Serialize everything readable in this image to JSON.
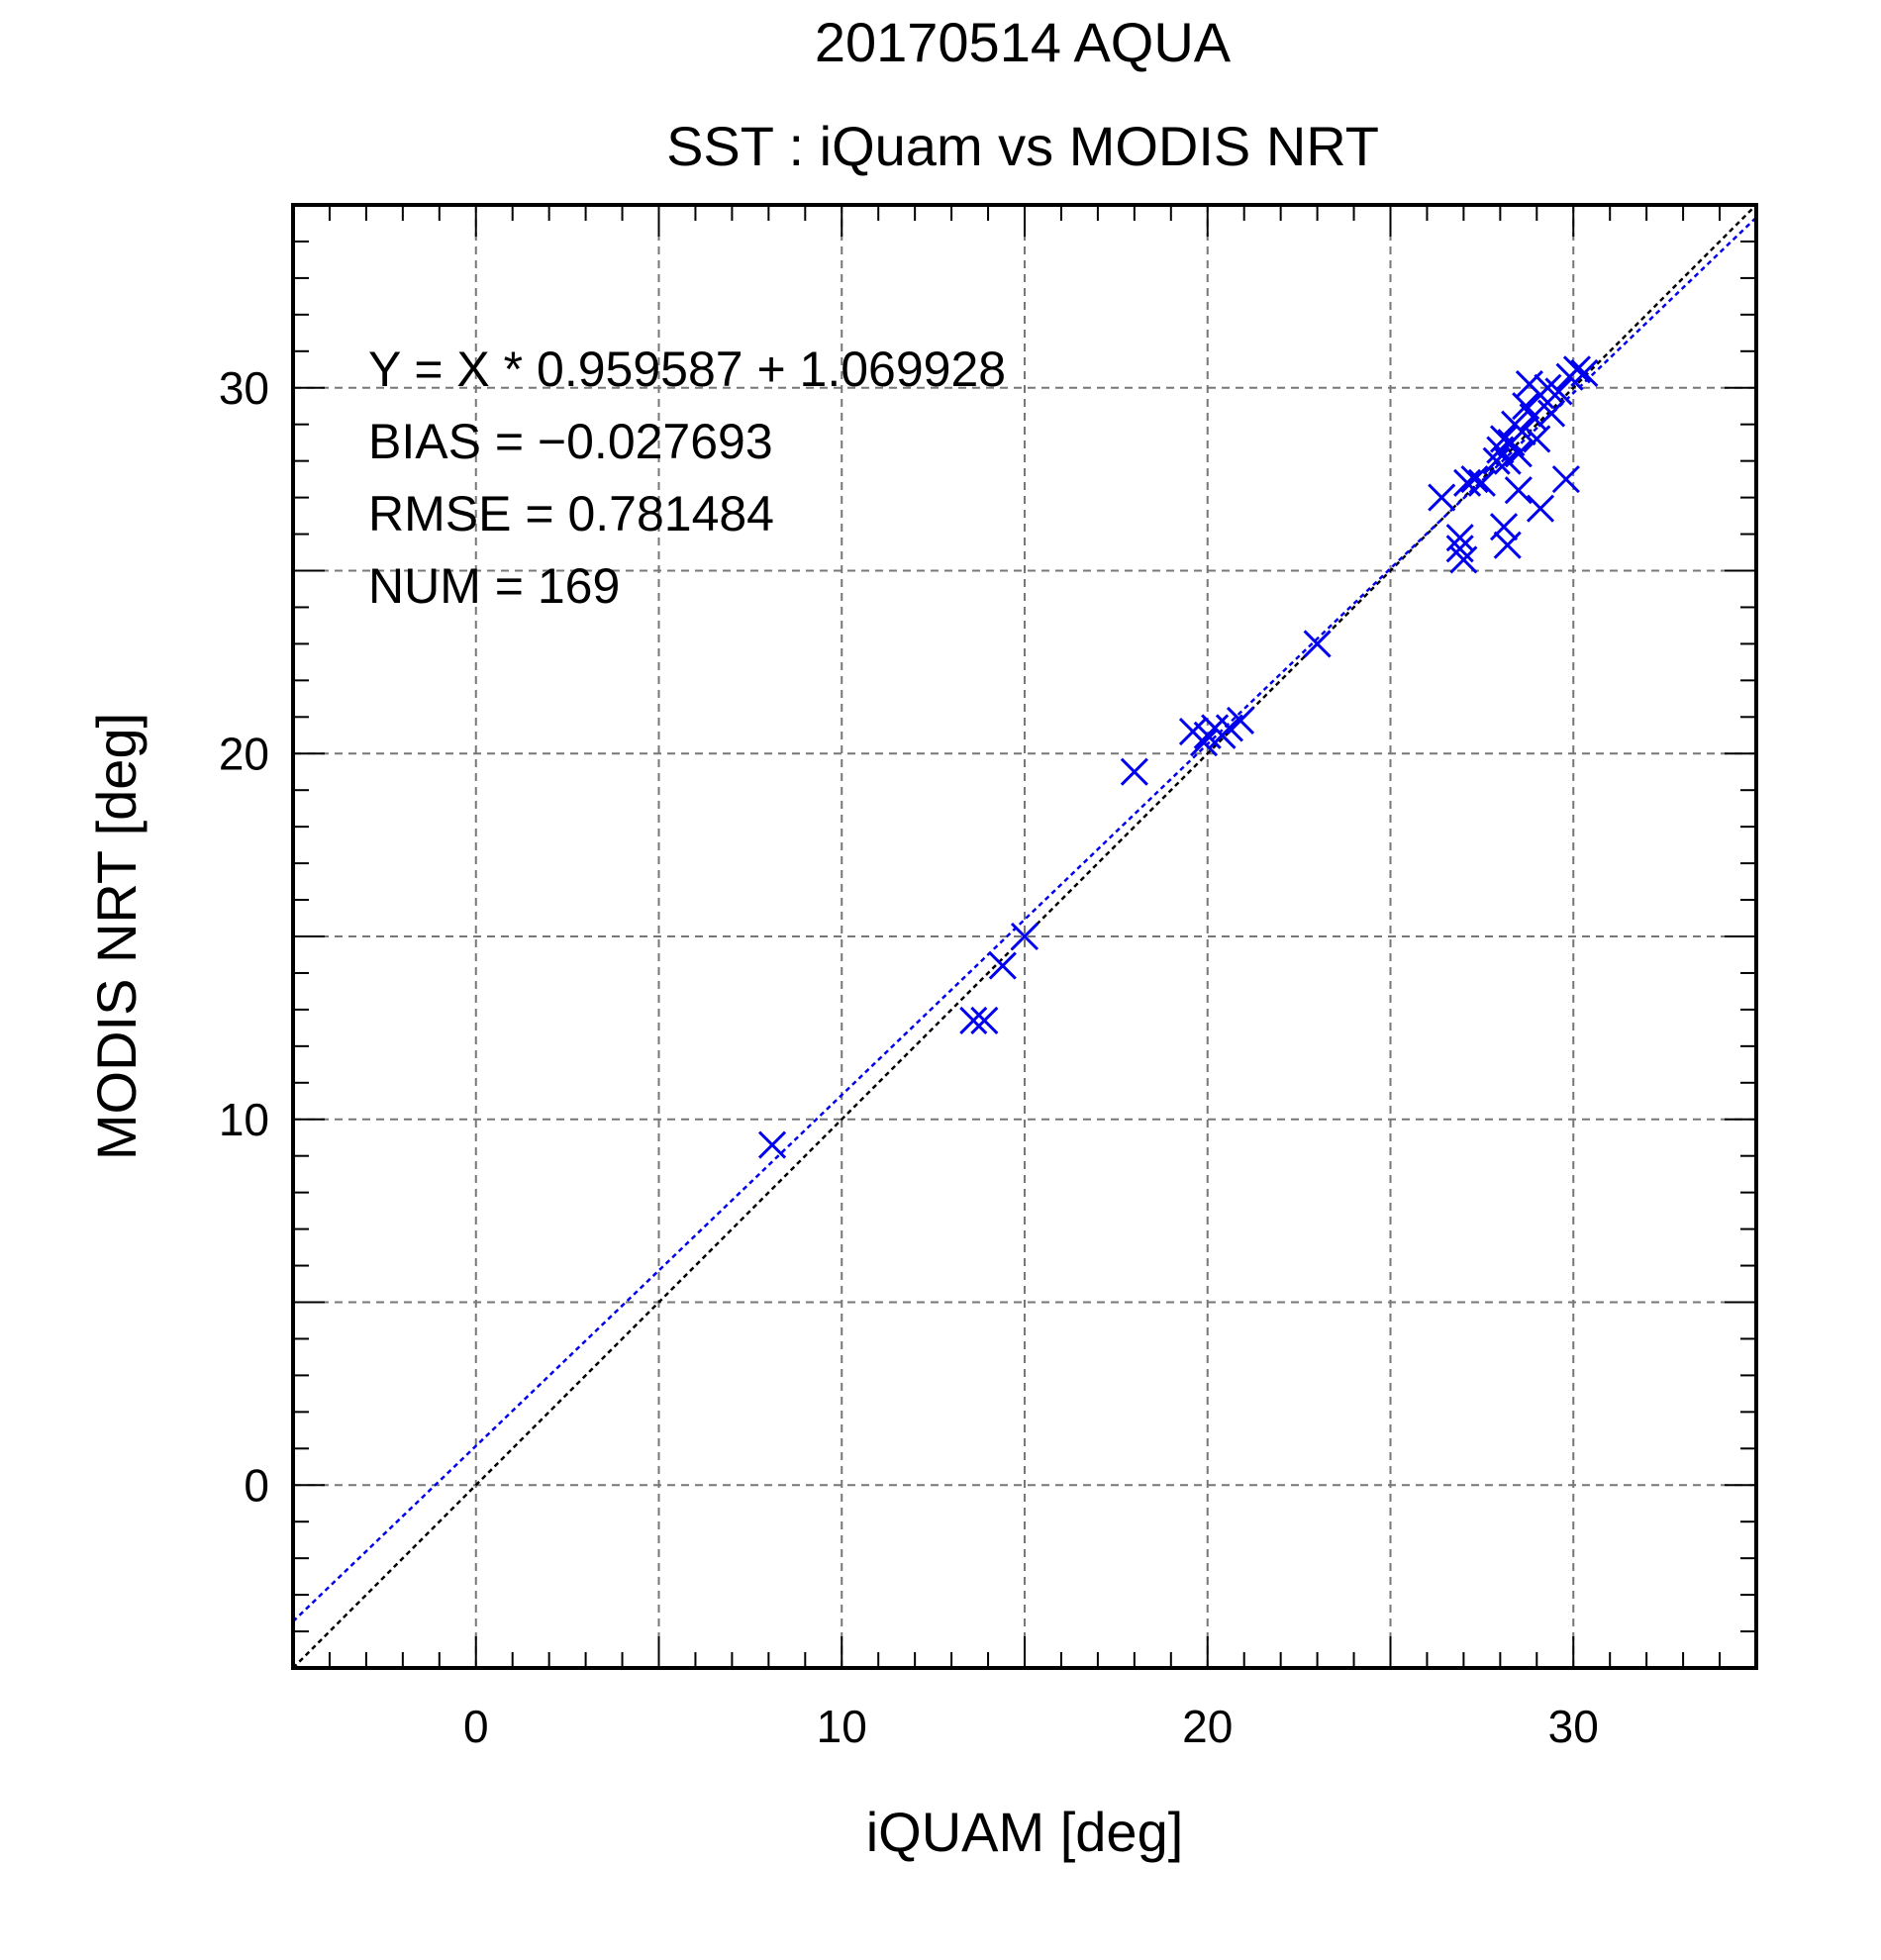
{
  "chart_data": {
    "type": "scatter",
    "title": "20170514 AQUA",
    "subtitle": "SST : iQuam vs MODIS NRT",
    "xlabel": "iQUAM [deg]",
    "ylabel": "MODIS NRT [deg]",
    "xlim": [
      -5,
      35
    ],
    "ylim": [
      -5,
      35
    ],
    "xticks": [
      0,
      10,
      20,
      30
    ],
    "yticks": [
      0,
      10,
      20,
      30
    ],
    "grid": true,
    "marker": "x",
    "colors": {
      "points": "#0000ee",
      "fit_line": "#0000ee",
      "identity_line": "#000000"
    },
    "regression": {
      "slope": 0.959587,
      "intercept": 1.069928
    },
    "stats": [
      "Y = X * 0.959587 + 1.069928",
      "BIAS = −0.027693",
      "RMSE = 0.781484",
      "NUM = 169"
    ],
    "points": [
      {
        "x": 8.1,
        "y": 9.3
      },
      {
        "x": 13.6,
        "y": 12.7
      },
      {
        "x": 13.9,
        "y": 12.7
      },
      {
        "x": 14.4,
        "y": 14.2
      },
      {
        "x": 15.0,
        "y": 15.0
      },
      {
        "x": 18.0,
        "y": 19.5
      },
      {
        "x": 19.6,
        "y": 20.6
      },
      {
        "x": 19.9,
        "y": 20.3
      },
      {
        "x": 20.0,
        "y": 20.5
      },
      {
        "x": 20.2,
        "y": 20.7
      },
      {
        "x": 20.4,
        "y": 20.5
      },
      {
        "x": 20.6,
        "y": 20.7
      },
      {
        "x": 20.9,
        "y": 20.9
      },
      {
        "x": 23.0,
        "y": 23.0
      },
      {
        "x": 26.4,
        "y": 27.0
      },
      {
        "x": 26.9,
        "y": 25.9
      },
      {
        "x": 26.9,
        "y": 25.6
      },
      {
        "x": 27.0,
        "y": 25.3
      },
      {
        "x": 27.1,
        "y": 27.4
      },
      {
        "x": 27.3,
        "y": 27.5
      },
      {
        "x": 27.5,
        "y": 27.4
      },
      {
        "x": 27.9,
        "y": 28.0
      },
      {
        "x": 28.0,
        "y": 28.3
      },
      {
        "x": 28.1,
        "y": 28.6
      },
      {
        "x": 28.2,
        "y": 28.0
      },
      {
        "x": 28.1,
        "y": 26.2
      },
      {
        "x": 28.2,
        "y": 25.7
      },
      {
        "x": 28.3,
        "y": 28.5
      },
      {
        "x": 28.4,
        "y": 29.0
      },
      {
        "x": 28.5,
        "y": 28.2
      },
      {
        "x": 28.5,
        "y": 27.2
      },
      {
        "x": 28.6,
        "y": 28.8
      },
      {
        "x": 28.7,
        "y": 29.5
      },
      {
        "x": 28.8,
        "y": 30.1
      },
      {
        "x": 28.9,
        "y": 29.2
      },
      {
        "x": 29.0,
        "y": 28.6
      },
      {
        "x": 29.1,
        "y": 29.8
      },
      {
        "x": 29.1,
        "y": 26.7
      },
      {
        "x": 29.3,
        "y": 30.0
      },
      {
        "x": 29.4,
        "y": 29.3
      },
      {
        "x": 29.6,
        "y": 29.9
      },
      {
        "x": 29.8,
        "y": 27.5
      },
      {
        "x": 29.9,
        "y": 30.3
      },
      {
        "x": 30.1,
        "y": 30.5
      },
      {
        "x": 30.3,
        "y": 30.4
      }
    ]
  }
}
